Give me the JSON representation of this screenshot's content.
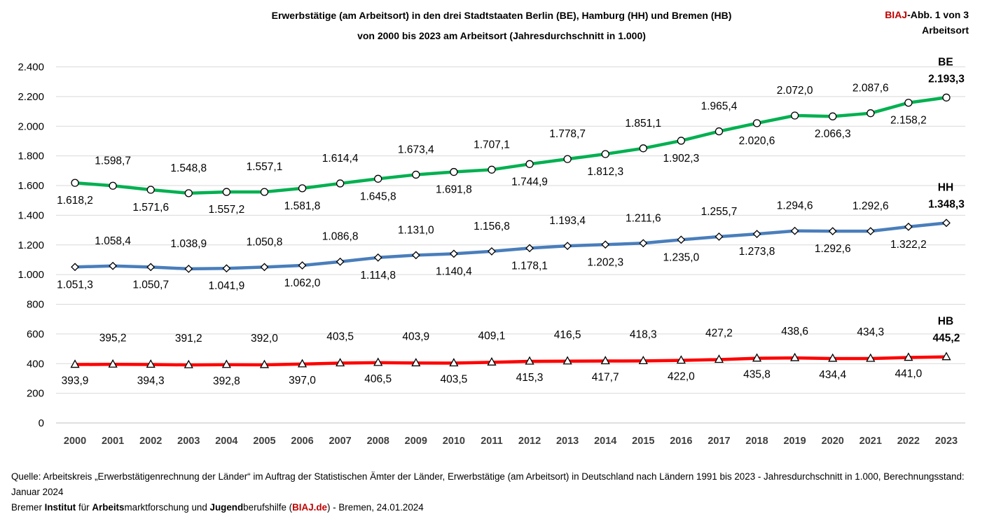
{
  "chart_data": {
    "type": "line",
    "title_line1": "Erwerbstätige (am Arbeitsort) in den drei Stadtstaaten Berlin (BE), Hamburg (HH) und Bremen (HB)",
    "title_line2": "von 2000 bis 2023 am Arbeitsort (Jahresdurchschnitt in 1.000)",
    "x": [
      "2000",
      "2001",
      "2002",
      "2003",
      "2004",
      "2005",
      "2006",
      "2007",
      "2008",
      "2009",
      "2010",
      "2011",
      "2012",
      "2013",
      "2014",
      "2015",
      "2016",
      "2017",
      "2018",
      "2019",
      "2020",
      "2021",
      "2022",
      "2023"
    ],
    "ylim": [
      0,
      2400
    ],
    "yticks": [
      0,
      200,
      400,
      600,
      800,
      1000,
      1200,
      1400,
      1600,
      1800,
      2000,
      2200,
      2400
    ],
    "ytick_labels": [
      "0",
      "200",
      "400",
      "600",
      "800",
      "1.000",
      "1.200",
      "1.400",
      "1.600",
      "1.800",
      "2.000",
      "2.200",
      "2.400"
    ],
    "grid": "horizontal",
    "series": [
      {
        "name": "BE",
        "color": "#00b050",
        "marker": "circle",
        "values": [
          1618.2,
          1598.7,
          1571.6,
          1548.8,
          1557.2,
          1557.1,
          1581.8,
          1614.4,
          1645.8,
          1673.4,
          1691.8,
          1707.1,
          1744.9,
          1778.7,
          1812.3,
          1851.1,
          1902.3,
          1965.4,
          2020.6,
          2072.0,
          2066.3,
          2087.6,
          2158.2,
          2193.3
        ],
        "labels": [
          "1.618,2",
          "1.598,7",
          "1.571,6",
          "1.548,8",
          "1.557,2",
          "1.557,1",
          "1.581,8",
          "1.614,4",
          "1.645,8",
          "1.673,4",
          "1.691,8",
          "1.707,1",
          "1.744,9",
          "1.778,7",
          "1.812,3",
          "1.851,1",
          "1.902,3",
          "1.965,4",
          "2.020,6",
          "2.072,0",
          "2.066,3",
          "2.087,6",
          "2.158,2",
          "2.193,3"
        ]
      },
      {
        "name": "HH",
        "color": "#4a7ebb",
        "marker": "diamond",
        "values": [
          1051.3,
          1058.4,
          1050.7,
          1038.9,
          1041.9,
          1050.8,
          1062.0,
          1086.8,
          1114.8,
          1131.0,
          1140.4,
          1156.8,
          1178.1,
          1193.4,
          1202.3,
          1211.6,
          1235.0,
          1255.7,
          1273.8,
          1294.6,
          1292.6,
          1292.6,
          1322.2,
          1348.3
        ],
        "labels": [
          "1.051,3",
          "1.058,4",
          "1.050,7",
          "1.038,9",
          "1.041,9",
          "1.050,8",
          "1.062,0",
          "1.086,8",
          "1.114,8",
          "1.131,0",
          "1.140,4",
          "1.156,8",
          "1.178,1",
          "1.193,4",
          "1.202,3",
          "1.211,6",
          "1.235,0",
          "1.255,7",
          "1.273,8",
          "1.294,6",
          "1.292,6",
          "1.292,6",
          "1.322,2",
          "1.348,3"
        ]
      },
      {
        "name": "HB",
        "color": "#ff0000",
        "marker": "triangle",
        "values": [
          393.9,
          395.2,
          394.3,
          391.2,
          392.8,
          392.0,
          397.0,
          403.5,
          406.5,
          403.9,
          403.5,
          409.1,
          415.3,
          416.5,
          417.7,
          418.3,
          422.0,
          427.2,
          435.8,
          438.6,
          434.4,
          434.3,
          441.0,
          445.2
        ],
        "labels": [
          "393,9",
          "395,2",
          "394,3",
          "391,2",
          "392,8",
          "392,0",
          "397,0",
          "403,5",
          "406,5",
          "403,9",
          "403,5",
          "409,1",
          "415,3",
          "416,5",
          "417,7",
          "418,3",
          "422,0",
          "427,2",
          "435,8",
          "438,6",
          "434,4",
          "434,3",
          "441,0",
          "445,2"
        ]
      }
    ]
  },
  "badge": {
    "brand": "BIAJ",
    "suffix": "-Abb. 1 von 3",
    "line2": "Arbeitsort"
  },
  "footer": {
    "source": "Quelle: Arbeitskreis „Erwerbstätigenrechnung der Länder“ im Auftrag der Statistischen Ämter der Länder, Erwerbstätige (am Arbeitsort) in Deutschland nach Ländern 1991 bis 2023 - Jahresdurchschnitt in 1.000, Berechnungsstand: Januar 2024",
    "org_w1": "Bremer ",
    "org_b1": "Institut",
    "org_w2": " für ",
    "org_b2": "Arbeits",
    "org_w3": "marktforschung und ",
    "org_b3": "Jugend",
    "org_w4": "berufshilfe (",
    "org_link": "BIAJ.de",
    "org_w5": ") - Bremen, 24.01.2024"
  }
}
